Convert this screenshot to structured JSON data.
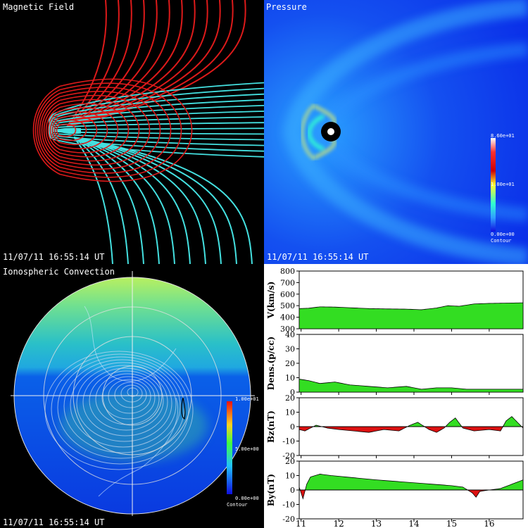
{
  "panels": {
    "magnetic": {
      "title": "Magnetic Field",
      "timestamp": "11/07/11 16:55:14 UT"
    },
    "pressure": {
      "title": "Pressure",
      "timestamp": "11/07/11 16:55:14 UT",
      "colorbar": {
        "max": "8.60e+01",
        "mid": "1.80e+01",
        "min": "0.00e+00",
        "caption": "Contour"
      }
    },
    "iono": {
      "title": "Ionospheric Convection",
      "timestamp": "11/07/11 16:55:14 UT",
      "colorbar": {
        "max": "1.00e+01",
        "mid": "5.00e+00",
        "min": "0.00e+00",
        "caption": "Contour"
      }
    }
  },
  "colors": {
    "positive": "#33dd22",
    "negative": "#dd1111",
    "fieldline_a": "#44e0e0",
    "fieldline_b": "#dd1a1a"
  },
  "chart_data": {
    "type": "area",
    "x_tick_labels": [
      "11",
      "12",
      "13",
      "14",
      "15",
      "16"
    ],
    "xlim": [
      10.95,
      16.9
    ],
    "series": [
      {
        "ylabel": "V(km/s)",
        "ylim": [
          300,
          800
        ],
        "yticks": [
          "800",
          "700",
          "600",
          "500",
          "400",
          "300"
        ],
        "x": [
          10.95,
          11.2,
          11.5,
          11.9,
          12.3,
          12.8,
          13.3,
          13.8,
          14.2,
          14.6,
          14.9,
          15.2,
          15.6,
          16.0,
          16.4,
          16.9
        ],
        "y": [
          475,
          478,
          490,
          488,
          482,
          475,
          472,
          470,
          465,
          480,
          500,
          495,
          515,
          520,
          522,
          525
        ]
      },
      {
        "ylabel": "Dens.(p/cc)",
        "ylim": [
          0,
          40
        ],
        "yticks": [
          "40",
          "30",
          "20",
          "10",
          "0"
        ],
        "x": [
          10.95,
          11.2,
          11.5,
          11.9,
          12.3,
          12.8,
          13.3,
          13.8,
          14.2,
          14.6,
          15.0,
          15.4,
          15.8,
          16.2,
          16.6,
          16.9
        ],
        "y": [
          9,
          8,
          6,
          7,
          5,
          4,
          3,
          4,
          2,
          3,
          3,
          2,
          2,
          2,
          2,
          2
        ]
      },
      {
        "ylabel": "Bz(nT)",
        "ylim": [
          -20,
          20
        ],
        "yticks": [
          "20",
          "10",
          "0",
          "-10",
          "-20"
        ],
        "x": [
          10.95,
          11.1,
          11.4,
          11.7,
          12.0,
          12.4,
          12.8,
          13.2,
          13.6,
          13.9,
          14.1,
          14.4,
          14.6,
          14.8,
          14.95,
          15.1,
          15.3,
          15.6,
          16.0,
          16.3,
          16.45,
          16.6,
          16.75,
          16.9
        ],
        "y": [
          -2,
          -3,
          1,
          -1,
          -2,
          -3,
          -4,
          -2,
          -3,
          1,
          3,
          -2,
          -4,
          -1,
          3,
          6,
          -1,
          -3,
          -2,
          -3,
          4,
          7,
          3,
          -1
        ]
      },
      {
        "ylabel": "By(nT)",
        "ylim": [
          -20,
          20
        ],
        "yticks": [
          "20",
          "10",
          "0",
          "-10",
          "-20"
        ],
        "x": [
          10.95,
          11.05,
          11.15,
          11.25,
          11.5,
          11.8,
          12.2,
          12.6,
          13.0,
          13.5,
          14.0,
          14.5,
          15.0,
          15.3,
          15.55,
          15.65,
          15.75,
          16.0,
          16.3,
          16.6,
          16.9
        ],
        "y": [
          2,
          -6,
          4,
          9,
          11,
          10,
          9,
          8,
          7,
          6,
          5,
          4,
          3,
          2,
          -2,
          -5,
          -1,
          0,
          1,
          4,
          7
        ]
      }
    ]
  }
}
